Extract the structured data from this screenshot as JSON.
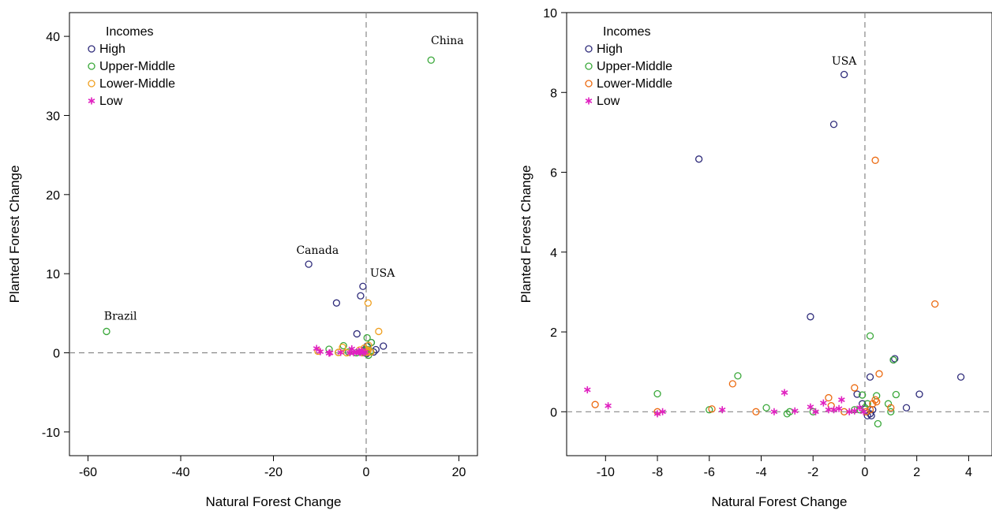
{
  "colors": {
    "High": "#2e2b7a",
    "Upper-Middle": "#3aa83a",
    "Lower-Middle": "#f0a020",
    "Low": "#e020c0",
    "Lower-Middle-right": "#ec6a10"
  },
  "chart_data": [
    {
      "type": "scatter",
      "title": "",
      "xlabel": "Natural Forest Change",
      "ylabel": "Planted Forest Change",
      "xlim": [
        -64,
        24
      ],
      "ylim": [
        -13,
        43
      ],
      "xticks": [
        -60,
        -40,
        -20,
        0,
        20
      ],
      "yticks": [
        -10,
        0,
        10,
        20,
        30,
        40
      ],
      "reference_lines": {
        "x": 0,
        "y": 0,
        "style": "dashed"
      },
      "legend": {
        "title": "Incomes",
        "placement": "top-left",
        "entries": [
          {
            "label": "High",
            "marker": "circle",
            "group": "High"
          },
          {
            "label": "Upper-Middle",
            "marker": "circle",
            "group": "Upper-Middle"
          },
          {
            "label": "Lower-Middle",
            "marker": "circle",
            "group": "Lower-Middle"
          },
          {
            "label": "Low",
            "marker": "star",
            "group": "Low"
          }
        ]
      },
      "annotations": [
        {
          "text": "China",
          "x": 17.5,
          "y": 39
        },
        {
          "text": "Canada",
          "x": -10.5,
          "y": 12.5
        },
        {
          "text": "USA",
          "x": 3.5,
          "y": 9.6
        },
        {
          "text": "Brazil",
          "x": -53,
          "y": 4.2
        }
      ],
      "series": [
        {
          "group": "High",
          "marker": "circle",
          "x": [
            -12.4,
            -0.7,
            -1.2,
            -6.4,
            -2.0,
            3.7,
            2.1,
            1.6,
            1.1,
            0.2,
            -0.3,
            0.1,
            0.3,
            -0.5
          ],
          "y": [
            11.2,
            8.4,
            7.2,
            6.3,
            2.4,
            0.85,
            0.4,
            0.1,
            1.3,
            0.85,
            0.4,
            -0.1,
            0.1,
            0.2
          ]
        },
        {
          "group": "Upper-Middle",
          "marker": "circle",
          "x": [
            14.0,
            -56.0,
            0.2,
            1.1,
            -4.9,
            -8.0,
            -3.8,
            0.5,
            -0.1,
            -2.1,
            0.9,
            -0.4,
            0.3,
            0.0,
            -6.0
          ],
          "y": [
            37.0,
            2.7,
            1.9,
            1.3,
            0.9,
            0.45,
            0.1,
            -0.3,
            0.4,
            0.0,
            0.2,
            0.05,
            0.4,
            0.2,
            0.05
          ]
        },
        {
          "group": "Lower-Middle",
          "marker": "circle",
          "x": [
            0.4,
            2.7,
            -5.1,
            -10.4,
            -4.2,
            -1.4,
            0.5,
            0.4,
            -0.4,
            1.0,
            -6.0,
            0.3,
            -0.8,
            0.2
          ],
          "y": [
            6.3,
            2.7,
            0.7,
            0.2,
            0.0,
            0.35,
            0.95,
            0.3,
            0.6,
            0.1,
            0.05,
            0.2,
            0.0,
            0.05
          ]
        },
        {
          "group": "Low",
          "marker": "star",
          "x": [
            -10.7,
            -8.0,
            -9.9,
            -3.1,
            -1.6,
            -0.9,
            -5.5,
            -2.7,
            -2.1,
            -1.2,
            -0.6,
            -0.2,
            -7.8,
            -3.5,
            -1.4
          ],
          "y": [
            0.55,
            -0.05,
            0.15,
            0.5,
            0.2,
            0.3,
            0.05,
            0.0,
            0.1,
            0.05,
            0.0,
            0.1,
            0.0,
            0.0,
            0.05
          ]
        }
      ]
    },
    {
      "type": "scatter",
      "title": "",
      "xlabel": "Natural Forest Change",
      "ylabel": "Planted Forest Change",
      "xlim": [
        -11.5,
        4.9
      ],
      "ylim": [
        -1.1,
        10
      ],
      "xticks": [
        -10,
        -8,
        -6,
        -4,
        -2,
        0,
        2,
        4
      ],
      "yticks": [
        0,
        2,
        4,
        6,
        8,
        10
      ],
      "reference_lines": {
        "x": 0,
        "y": 0,
        "style": "dashed"
      },
      "legend": {
        "title": "Incomes",
        "placement": "top-left",
        "entries": [
          {
            "label": "High",
            "marker": "circle",
            "group": "High"
          },
          {
            "label": "Upper-Middle",
            "marker": "circle",
            "group": "Upper-Middle"
          },
          {
            "label": "Lower-Middle",
            "marker": "circle",
            "group": "Lower-Middle-right"
          },
          {
            "label": "Low",
            "marker": "star",
            "group": "Low"
          }
        ]
      },
      "annotations": [
        {
          "text": "USA",
          "x": -0.8,
          "y": 8.7
        }
      ],
      "series": [
        {
          "group": "High",
          "marker": "circle",
          "x": [
            -0.8,
            -1.2,
            -6.4,
            -2.1,
            3.7,
            2.1,
            1.6,
            1.1,
            1.15,
            0.2,
            -0.3,
            0.1,
            0.3,
            0.2,
            0.0,
            -0.1,
            0.25
          ],
          "y": [
            8.45,
            7.2,
            6.33,
            2.38,
            0.87,
            0.44,
            0.1,
            1.3,
            1.33,
            0.87,
            0.44,
            -0.1,
            0.05,
            -0.05,
            0.1,
            0.2,
            -0.1
          ]
        },
        {
          "group": "Upper-Middle",
          "marker": "circle",
          "x": [
            0.2,
            1.1,
            -4.9,
            -8.0,
            -3.8,
            0.5,
            -0.1,
            -2.0,
            0.9,
            -0.4,
            0.45,
            1.2,
            -3.0,
            -2.9,
            -6.0,
            1.0,
            0.0,
            -0.2,
            0.1
          ],
          "y": [
            1.9,
            1.3,
            0.9,
            0.45,
            0.1,
            -0.3,
            0.42,
            0.0,
            0.2,
            0.05,
            0.4,
            0.43,
            -0.05,
            0.0,
            0.05,
            0.0,
            0.1,
            0.05,
            0.2
          ]
        },
        {
          "group": "Lower-Middle-right",
          "marker": "circle",
          "x": [
            0.4,
            2.7,
            -5.1,
            -10.4,
            -4.2,
            -1.4,
            0.55,
            0.4,
            -0.4,
            1.0,
            -5.9,
            0.3,
            -0.8,
            0.2,
            -8.0,
            0.45,
            -1.3,
            0.05
          ],
          "y": [
            6.3,
            2.7,
            0.7,
            0.18,
            0.0,
            0.35,
            0.95,
            0.3,
            0.6,
            0.1,
            0.07,
            0.2,
            0.0,
            0.05,
            0.0,
            0.25,
            0.15,
            0.0
          ]
        },
        {
          "group": "Low",
          "marker": "star",
          "x": [
            -10.7,
            -8.0,
            -9.9,
            -3.1,
            -1.6,
            -0.9,
            -5.5,
            -2.7,
            -2.1,
            -1.2,
            -0.6,
            -0.2,
            -7.8,
            -3.5,
            -1.4,
            -1.9,
            -1.0,
            -0.4,
            -0.05
          ],
          "y": [
            0.55,
            -0.05,
            0.15,
            0.48,
            0.22,
            0.3,
            0.05,
            0.02,
            0.12,
            0.05,
            0.0,
            0.1,
            0.0,
            0.0,
            0.05,
            0.0,
            0.08,
            0.02,
            0.0
          ]
        }
      ]
    }
  ]
}
